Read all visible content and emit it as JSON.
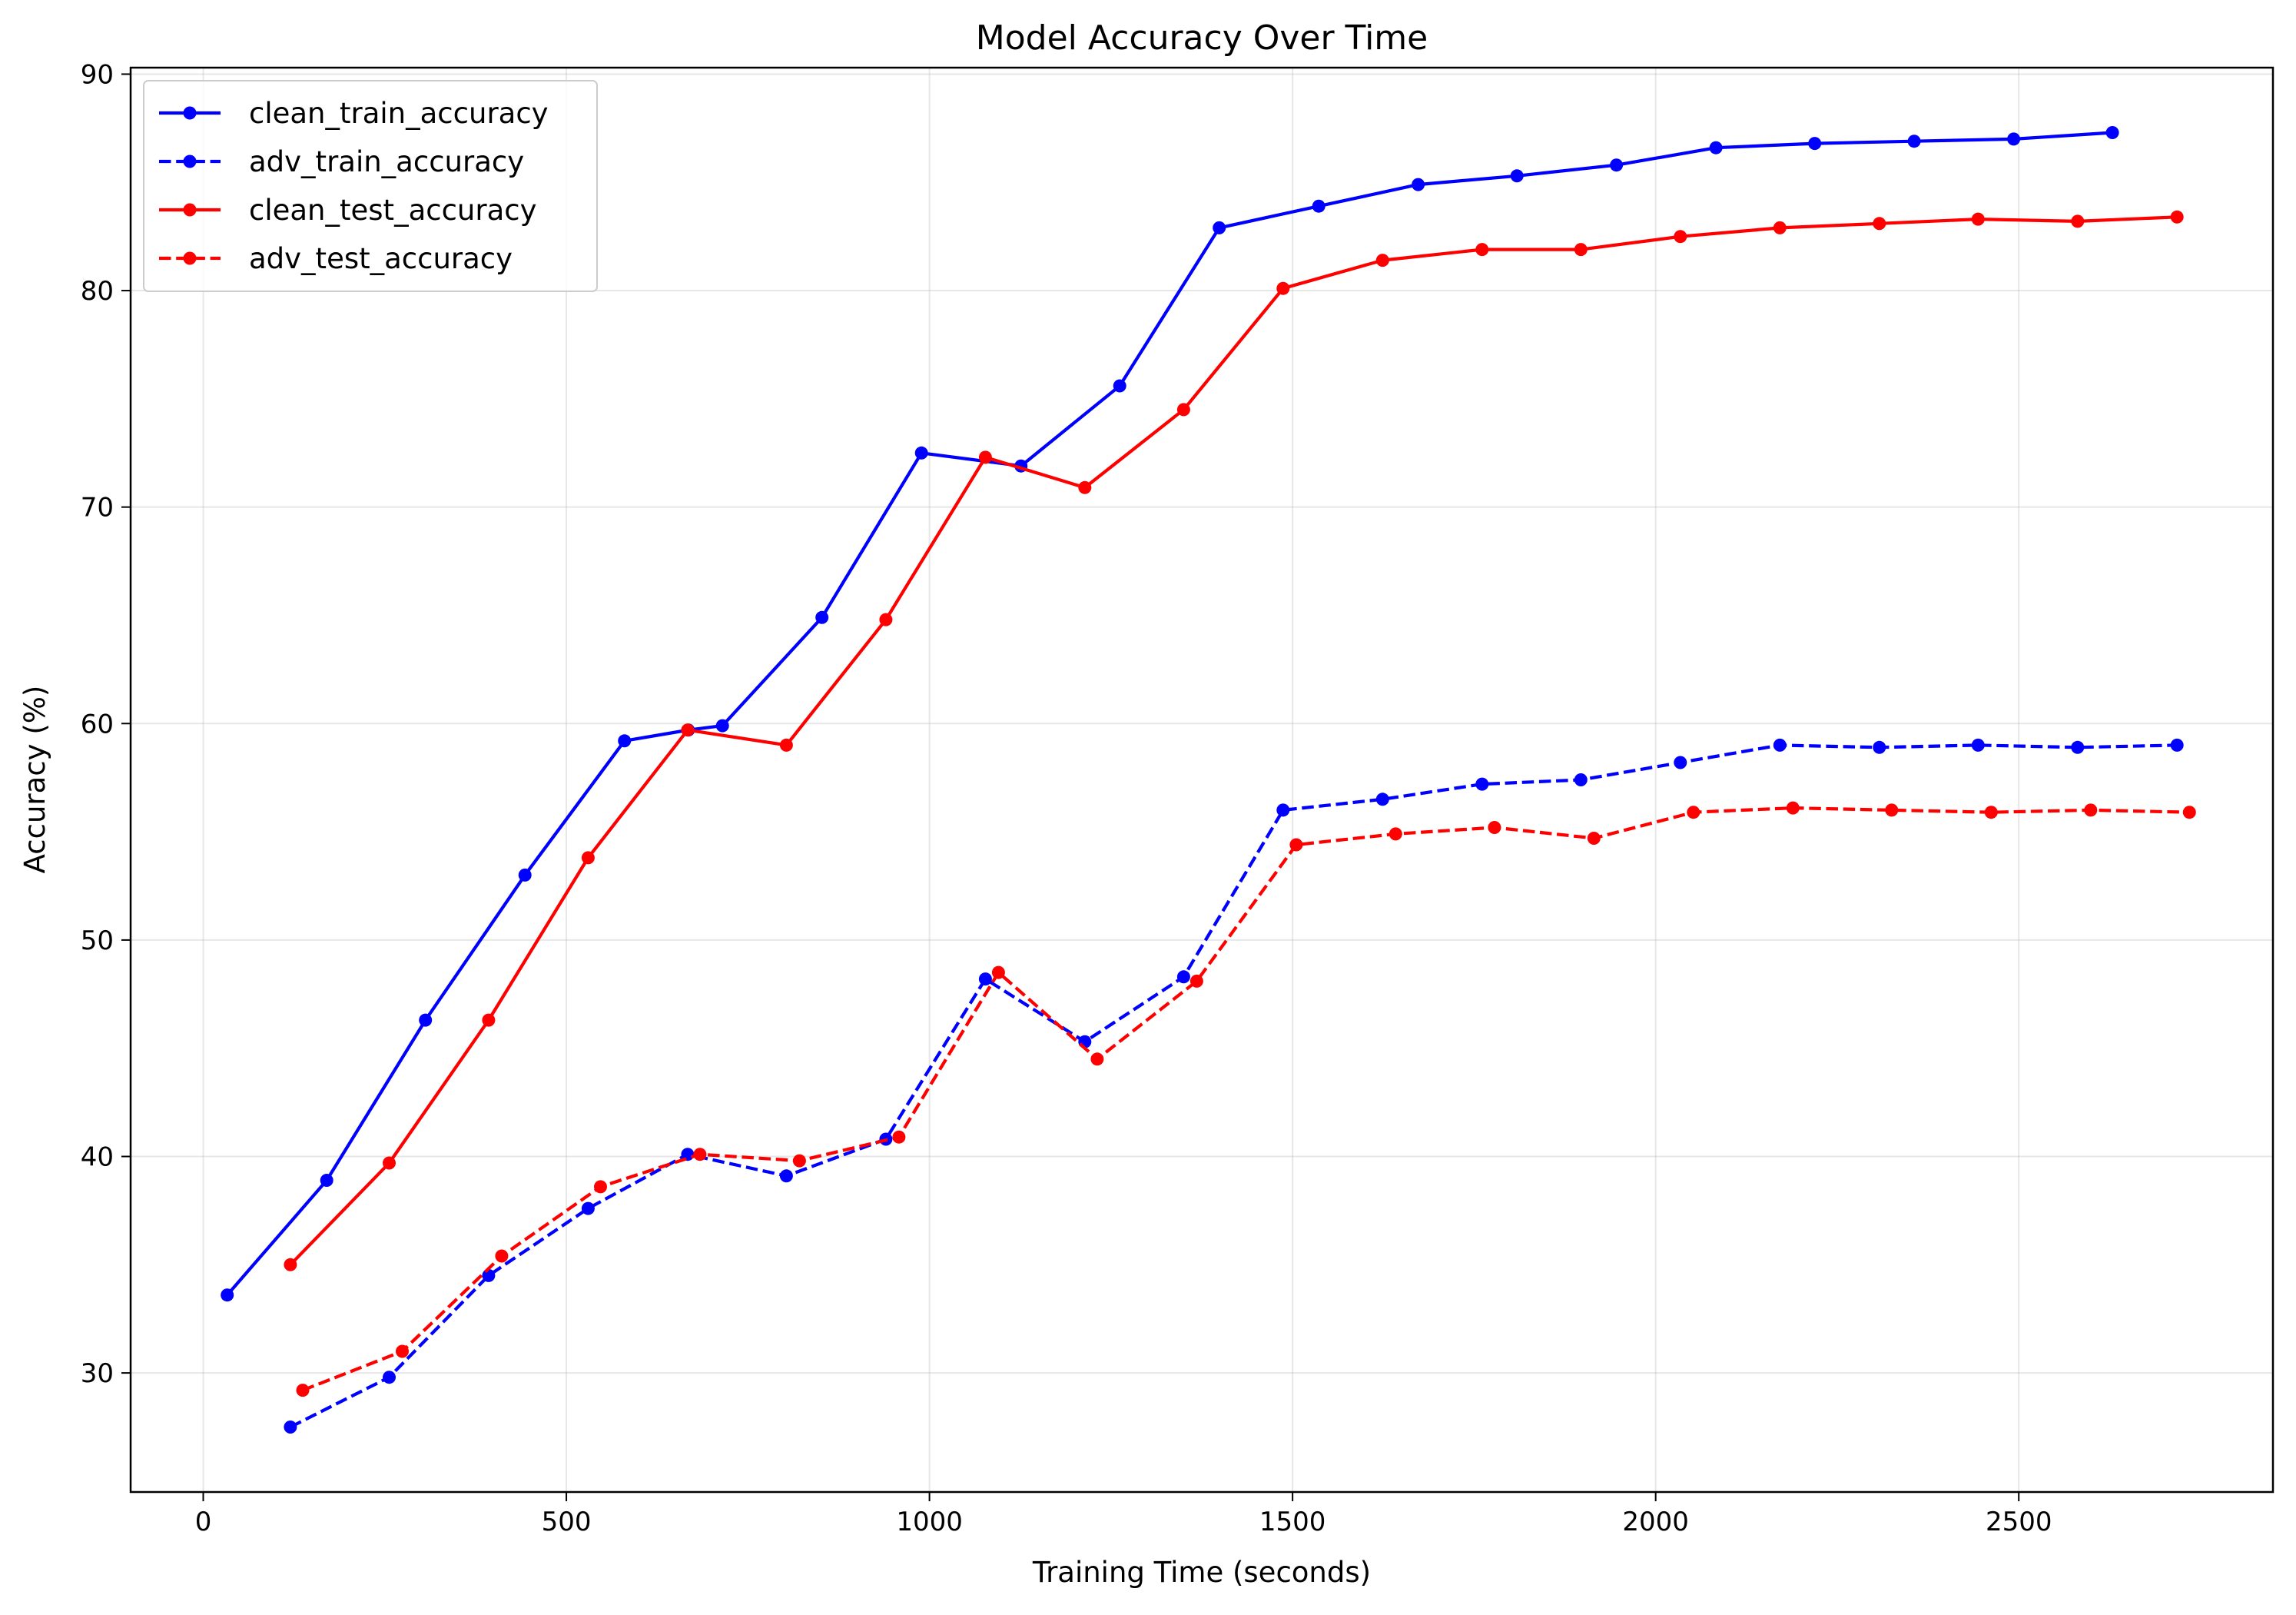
{
  "chart_data": {
    "type": "line",
    "title": "Model Accuracy Over Time",
    "xlabel": "Training Time (seconds)",
    "ylabel": "Accuracy (%)",
    "xlim": [
      -100,
      2850
    ],
    "ylim": [
      24.5,
      90.3
    ],
    "xticks": [
      0,
      500,
      1000,
      1500,
      2000,
      2500
    ],
    "yticks": [
      30,
      40,
      50,
      60,
      70,
      80,
      90
    ],
    "xtick_labels": [
      "0",
      "500",
      "1000",
      "1500",
      "2000",
      "2500"
    ],
    "ytick_labels": [
      "30",
      "40",
      "50",
      "60",
      "70",
      "80",
      "90"
    ],
    "grid": true,
    "legend_position": "top-left",
    "series": [
      {
        "name": "clean_train_accuracy",
        "color": "#0000ff",
        "linestyle": "solid",
        "points": [
          [
            33,
            33.6
          ],
          [
            170,
            38.9
          ],
          [
            306,
            46.3
          ],
          [
            443,
            53.0
          ],
          [
            580,
            59.2
          ],
          [
            668,
            59.7
          ],
          [
            715,
            59.9
          ],
          [
            852,
            64.9
          ],
          [
            989,
            72.5
          ],
          [
            1126,
            71.9
          ],
          [
            1262,
            75.6
          ],
          [
            1399,
            82.9
          ],
          [
            1536,
            83.9
          ],
          [
            1673,
            84.9
          ],
          [
            1809,
            85.3
          ],
          [
            1946,
            85.8
          ],
          [
            2083,
            86.6
          ],
          [
            2219,
            86.8
          ],
          [
            2356,
            86.9
          ],
          [
            2493,
            87.0
          ],
          [
            2629,
            87.3
          ]
        ]
      },
      {
        "name": "adv_train_accuracy",
        "color": "#0000ff",
        "linestyle": "dashed",
        "points": [
          [
            120,
            27.5
          ],
          [
            256,
            29.8
          ],
          [
            393,
            34.5
          ],
          [
            530,
            37.6
          ],
          [
            667,
            40.1
          ],
          [
            803,
            39.1
          ],
          [
            940,
            40.8
          ],
          [
            1077,
            48.2
          ],
          [
            1214,
            45.3
          ],
          [
            1350,
            48.3
          ],
          [
            1487,
            56.0
          ],
          [
            1624,
            56.5
          ],
          [
            1761,
            57.2
          ],
          [
            1897,
            57.4
          ],
          [
            2034,
            58.2
          ],
          [
            2171,
            59.0
          ],
          [
            2308,
            58.9
          ],
          [
            2444,
            59.0
          ],
          [
            2581,
            58.9
          ],
          [
            2718,
            59.0
          ]
        ]
      },
      {
        "name": "clean_test_accuracy",
        "color": "#ff0000",
        "linestyle": "solid",
        "points": [
          [
            120,
            35.0
          ],
          [
            256,
            39.7
          ],
          [
            393,
            46.3
          ],
          [
            530,
            53.8
          ],
          [
            667,
            59.7
          ],
          [
            803,
            59.0
          ],
          [
            940,
            64.8
          ],
          [
            1077,
            72.3
          ],
          [
            1214,
            70.9
          ],
          [
            1350,
            74.5
          ],
          [
            1487,
            80.1
          ],
          [
            1624,
            81.4
          ],
          [
            1761,
            81.9
          ],
          [
            1897,
            81.9
          ],
          [
            2034,
            82.5
          ],
          [
            2171,
            82.9
          ],
          [
            2308,
            83.1
          ],
          [
            2444,
            83.3
          ],
          [
            2581,
            83.2
          ],
          [
            2718,
            83.4
          ]
        ]
      },
      {
        "name": "adv_test_accuracy",
        "color": "#ff0000",
        "linestyle": "dashed",
        "points": [
          [
            137,
            29.2
          ],
          [
            274,
            31.0
          ],
          [
            411,
            35.4
          ],
          [
            547,
            38.6
          ],
          [
            684,
            40.1
          ],
          [
            821,
            39.8
          ],
          [
            958,
            40.9
          ],
          [
            1095,
            48.5
          ],
          [
            1231,
            44.5
          ],
          [
            1368,
            48.1
          ],
          [
            1505,
            54.4
          ],
          [
            1642,
            54.9
          ],
          [
            1778,
            55.2
          ],
          [
            1915,
            54.7
          ],
          [
            2052,
            55.9
          ],
          [
            2189,
            56.1
          ],
          [
            2325,
            56.0
          ],
          [
            2462,
            55.9
          ],
          [
            2599,
            56.0
          ],
          [
            2735,
            55.9
          ]
        ]
      }
    ]
  }
}
